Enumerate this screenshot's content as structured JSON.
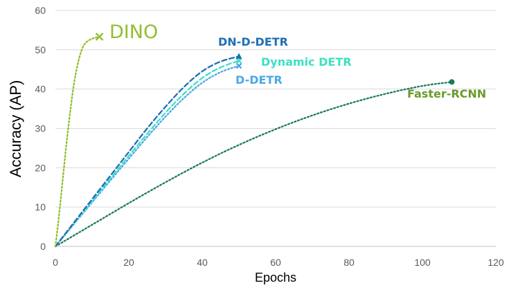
{
  "chart_data": {
    "type": "line",
    "title": "",
    "xlabel": "Epochs",
    "ylabel": "Accuracy (AP)",
    "xlim": [
      0,
      120
    ],
    "ylim": [
      0,
      60
    ],
    "x_ticks": [
      "0",
      "20",
      "40",
      "60",
      "80",
      "100",
      "120"
    ],
    "y_ticks": [
      "0",
      "10",
      "20",
      "30",
      "40",
      "50",
      "60"
    ],
    "grid": "horizontal",
    "legend": "none (series labeled at line ends)",
    "series": [
      {
        "name": "DINO",
        "color": "#8fbf2c",
        "dash": "dotted",
        "marker": "x",
        "points": [
          [
            0,
            0
          ],
          [
            1,
            8
          ],
          [
            2,
            17
          ],
          [
            3,
            26
          ],
          [
            4,
            34
          ],
          [
            5,
            41
          ],
          [
            6,
            46
          ],
          [
            7,
            49.5
          ],
          [
            8,
            51.5
          ],
          [
            9,
            52.3
          ],
          [
            10,
            52.8
          ],
          [
            11,
            53.1
          ],
          [
            12,
            53.3
          ]
        ]
      },
      {
        "name": "DN-D-DETR",
        "color": "#1f6fb5",
        "dash": "dashed",
        "marker": "triangle",
        "points": [
          [
            0,
            0
          ],
          [
            5,
            6
          ],
          [
            10,
            12
          ],
          [
            15,
            18
          ],
          [
            20,
            24
          ],
          [
            25,
            30
          ],
          [
            30,
            35.5
          ],
          [
            35,
            40.5
          ],
          [
            40,
            44.5
          ],
          [
            45,
            47
          ],
          [
            50,
            48.3
          ]
        ]
      },
      {
        "name": "Dynamic DETR",
        "color": "#3de0c4",
        "dash": "dashed",
        "marker": "x",
        "points": [
          [
            0,
            0
          ],
          [
            5,
            5.8
          ],
          [
            10,
            11.6
          ],
          [
            15,
            17.3
          ],
          [
            20,
            23
          ],
          [
            25,
            28.6
          ],
          [
            30,
            34
          ],
          [
            35,
            38.8
          ],
          [
            40,
            42.8
          ],
          [
            45,
            45.5
          ],
          [
            50,
            47.2
          ]
        ]
      },
      {
        "name": "D-DETR",
        "color": "#4da8e8",
        "dash": "dotted",
        "marker": "x",
        "points": [
          [
            0,
            0
          ],
          [
            5,
            5.6
          ],
          [
            10,
            11.2
          ],
          [
            15,
            16.8
          ],
          [
            20,
            22.3
          ],
          [
            25,
            27.8
          ],
          [
            30,
            33
          ],
          [
            35,
            37.7
          ],
          [
            40,
            41.6
          ],
          [
            45,
            44.3
          ],
          [
            50,
            45.9
          ]
        ]
      },
      {
        "name": "Faster-RCNN",
        "color": "#1a7a5a",
        "dash": "dotted",
        "marker": "circle",
        "points": [
          [
            0,
            0
          ],
          [
            10,
            5.5
          ],
          [
            20,
            11
          ],
          [
            30,
            16.3
          ],
          [
            40,
            21.3
          ],
          [
            50,
            25.8
          ],
          [
            60,
            29.8
          ],
          [
            70,
            33.3
          ],
          [
            80,
            36.3
          ],
          [
            90,
            38.8
          ],
          [
            100,
            40.8
          ],
          [
            108,
            41.8
          ]
        ]
      }
    ]
  },
  "labels": {
    "DINO": {
      "text": "DINO",
      "color": "#8fbf2c"
    },
    "DN-D-DETR": {
      "text": "DN-D-DETR",
      "color": "#1f6fb5"
    },
    "Dynamic DETR": {
      "text": "Dynamic DETR",
      "color": "#3de0c4"
    },
    "D-DETR": {
      "text": "D-DETR",
      "color": "#4da8e8"
    },
    "Faster-RCNN": {
      "text": "Faster-RCNN",
      "color": "#6a9a2a"
    }
  }
}
